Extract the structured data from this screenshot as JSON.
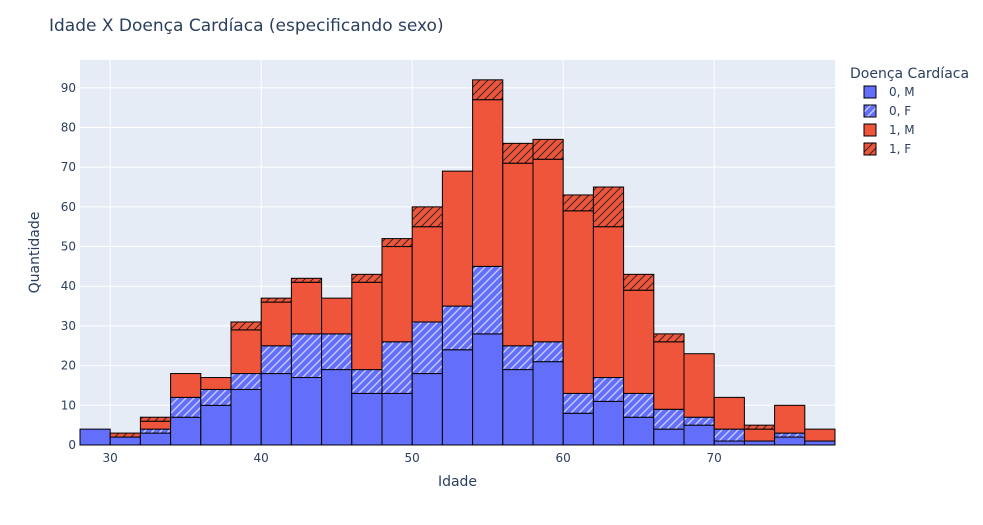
{
  "chart_data": {
    "type": "bar",
    "barmode": "stack",
    "title": "Idade X Doença Cardíaca (especificando sexo)",
    "xlabel": "Idade",
    "ylabel": "Quantidade",
    "xlim": [
      28,
      78
    ],
    "ylim": [
      0,
      97
    ],
    "bin_width": 2,
    "x_ticks": [
      30,
      40,
      50,
      60,
      70
    ],
    "y_ticks": [
      0,
      10,
      20,
      30,
      40,
      50,
      60,
      70,
      80,
      90
    ],
    "grid": true,
    "legend": {
      "title": "Doença Cardíaca",
      "placement": "right"
    },
    "bin_starts": [
      28,
      30,
      32,
      34,
      36,
      38,
      40,
      42,
      44,
      46,
      48,
      50,
      52,
      54,
      56,
      58,
      60,
      62,
      64,
      66,
      68,
      70,
      72,
      74,
      76
    ],
    "series": [
      {
        "name": "0, M",
        "color": "#636efa",
        "pattern": "none",
        "values": [
          4,
          2,
          3,
          7,
          10,
          14,
          18,
          17,
          19,
          13,
          13,
          18,
          24,
          28,
          19,
          21,
          8,
          11,
          7,
          4,
          5,
          1,
          1,
          2,
          1
        ]
      },
      {
        "name": "0, F",
        "color": "#636efa",
        "pattern": "hatch",
        "values": [
          0,
          0,
          1,
          5,
          4,
          4,
          7,
          11,
          9,
          6,
          13,
          13,
          11,
          17,
          6,
          5,
          5,
          6,
          6,
          5,
          2,
          3,
          0,
          1,
          0
        ]
      },
      {
        "name": "1, M",
        "color": "#ef553b",
        "pattern": "none",
        "values": [
          0,
          0,
          2,
          6,
          3,
          11,
          11,
          13,
          9,
          22,
          24,
          24,
          34,
          42,
          46,
          46,
          46,
          38,
          26,
          17,
          16,
          8,
          3,
          7,
          3
        ]
      },
      {
        "name": "1, F",
        "color": "#ef553b",
        "pattern": "hatch",
        "values": [
          0,
          1,
          1,
          0,
          0,
          2,
          1,
          1,
          0,
          2,
          2,
          5,
          0,
          5,
          5,
          5,
          4,
          10,
          4,
          2,
          0,
          0,
          1,
          0,
          0
        ]
      }
    ]
  }
}
